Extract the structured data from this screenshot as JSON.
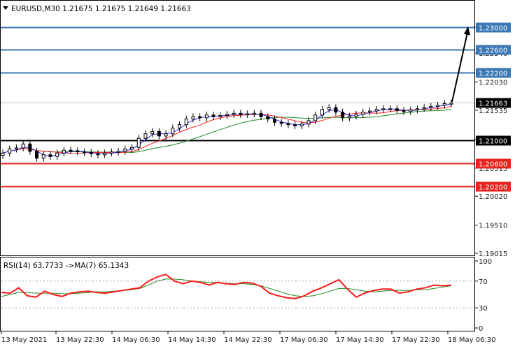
{
  "header": {
    "symbol_line": "EURUSD,M30  1.21675 1.21675 1.21649 1.21663"
  },
  "rsi_header": "RSI(14) 63.7733  ->MA(7) 65.1343",
  "colors": {
    "blue_level": "#3b78b5",
    "red_level": "#e8231e",
    "black_level": "#000000",
    "ma_fast": "#2a2aff",
    "ma_mid": "#ff2020",
    "ma_slow": "#1c8a1c",
    "rsi_line": "#ff1a1a",
    "rsi_ma": "#1c8a1c",
    "tag_blue": "#3b78b5",
    "tag_red": "#e8231e",
    "tag_black": "#000000"
  },
  "chart_data": [
    {
      "type": "line",
      "title": "EURUSD,M30",
      "ylim": [
        1.1899,
        1.2345
      ],
      "y_ticks": [
        "1.23000",
        "1.22540",
        "1.22030",
        "1.21535",
        "1.21025",
        "1.20515",
        "1.20020",
        "1.19510",
        "1.19015"
      ],
      "x_ticks": [
        "13 May 2021",
        "13 May 22:30",
        "14 May 06:30",
        "14 May 14:30",
        "14 May 22:30",
        "17 May 06:30",
        "17 May 14:30",
        "17 May 22:30",
        "18 May 06:30"
      ],
      "levels": [
        {
          "value": 1.23,
          "label": "1.23000",
          "color": "blue"
        },
        {
          "value": 1.226,
          "label": "1.22600",
          "color": "blue"
        },
        {
          "value": 1.222,
          "label": "1.22200",
          "color": "blue"
        },
        {
          "value": 1.21,
          "label": "1.21000",
          "color": "black"
        },
        {
          "value": 1.206,
          "label": "1.20600",
          "color": "red"
        },
        {
          "value": 1.202,
          "label": "1.20200",
          "color": "red"
        }
      ],
      "current_price": {
        "value": 1.21663,
        "label": "1.21663"
      },
      "forecast_arrow": {
        "from": 1.2168,
        "to": 1.23
      },
      "close_series": [
        1.2078,
        1.2085,
        1.2087,
        1.2094,
        1.2081,
        1.2069,
        1.2075,
        1.2072,
        1.2078,
        1.2083,
        1.2082,
        1.208,
        1.2079,
        1.2077,
        1.2075,
        1.2078,
        1.208,
        1.2081,
        1.2085,
        1.2088,
        1.2104,
        1.2112,
        1.2116,
        1.2108,
        1.2112,
        1.2122,
        1.2128,
        1.2138,
        1.2142,
        1.214,
        1.2145,
        1.2142,
        1.2144,
        1.2146,
        1.2148,
        1.2146,
        1.2147,
        1.2148,
        1.2142,
        1.2138,
        1.2132,
        1.213,
        1.2128,
        1.2126,
        1.2129,
        1.2135,
        1.2145,
        1.2155,
        1.2158,
        1.215,
        1.214,
        1.2143,
        1.2146,
        1.215,
        1.2152,
        1.2155,
        1.2156,
        1.2156,
        1.2153,
        1.2151,
        1.2154,
        1.2156,
        1.2158,
        1.216,
        1.2162,
        1.2165,
        1.2166
      ],
      "ma_series": [
        {
          "name": "MA fast",
          "color": "blue"
        },
        {
          "name": "MA mid",
          "color": "red"
        },
        {
          "name": "MA slow",
          "color": "green"
        }
      ]
    },
    {
      "type": "line",
      "title": "RSI(14)",
      "ylim": [
        0,
        100
      ],
      "y_ticks": [
        "100",
        "70",
        "30",
        "0"
      ],
      "levels": [
        70,
        30
      ],
      "rsi_values": [
        53,
        52,
        60,
        48,
        46,
        55,
        50,
        47,
        52,
        54,
        55,
        53,
        52,
        54,
        56,
        58,
        60,
        70,
        76,
        80,
        70,
        66,
        70,
        68,
        64,
        68,
        66,
        65,
        68,
        67,
        62,
        52,
        48,
        45,
        44,
        48,
        55,
        60,
        66,
        72,
        58,
        46,
        52,
        56,
        58,
        58,
        52,
        54,
        58,
        60,
        64,
        63,
        64
      ],
      "ma_values": [
        47,
        50,
        53,
        53,
        52,
        52,
        52,
        51,
        51,
        52,
        53,
        54,
        54,
        55,
        56,
        57,
        59,
        64,
        70,
        73,
        73,
        72,
        70,
        69,
        68,
        68,
        67,
        66,
        66,
        65,
        63,
        59,
        55,
        51,
        48,
        47,
        48,
        51,
        55,
        59,
        59,
        57,
        55,
        54,
        55,
        56,
        56,
        56,
        57,
        57,
        59,
        61,
        63
      ]
    }
  ]
}
